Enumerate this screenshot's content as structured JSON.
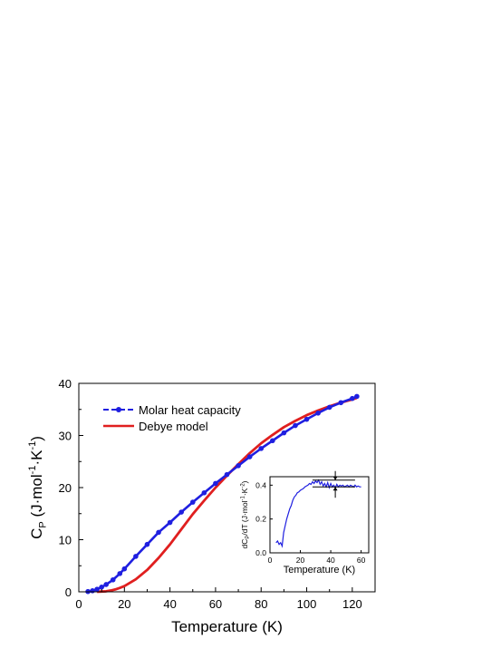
{
  "chart_data": [
    {
      "type": "line",
      "role": "main",
      "xlabel": "Temperature (K)",
      "ylabel": {
        "main": "C",
        "sub": "P",
        "rest": " (J·mol",
        "exp1": "-1",
        "mid": "·K",
        "exp2": "-1",
        "close": ")"
      },
      "xlim": [
        0,
        130
      ],
      "ylim": [
        0,
        40
      ],
      "xticks": [
        0,
        20,
        40,
        60,
        80,
        100,
        120
      ],
      "yticks": [
        0,
        10,
        20,
        30,
        40
      ],
      "legend": {
        "placement": "top-left"
      },
      "series": [
        {
          "name": "Molar heat capacity",
          "color": "#1f1fe0",
          "marker": "circle",
          "x": [
            4,
            6,
            8,
            10,
            12,
            15,
            18,
            20,
            25,
            30,
            35,
            40,
            45,
            50,
            55,
            60,
            65,
            70,
            75,
            80,
            85,
            90,
            95,
            100,
            105,
            110,
            115,
            120,
            122
          ],
          "y": [
            0.05,
            0.2,
            0.5,
            0.9,
            1.4,
            2.3,
            3.5,
            4.4,
            6.8,
            9.1,
            11.4,
            13.3,
            15.3,
            17.2,
            19.0,
            20.8,
            22.5,
            24.2,
            25.9,
            27.5,
            29.0,
            30.5,
            31.9,
            33.1,
            34.3,
            35.4,
            36.3,
            37.1,
            37.5
          ]
        },
        {
          "name": "Debye model",
          "color": "#e01f1f",
          "marker": "none",
          "x": [
            8,
            10,
            12,
            14,
            16,
            18,
            20,
            25,
            30,
            35,
            40,
            45,
            50,
            55,
            60,
            65,
            70,
            75,
            80,
            85,
            90,
            95,
            100,
            105,
            110,
            115,
            120,
            122
          ],
          "y": [
            0.0,
            0.05,
            0.1,
            0.25,
            0.45,
            0.75,
            1.1,
            2.4,
            4.2,
            6.5,
            9.1,
            12.0,
            14.9,
            17.5,
            20.0,
            22.3,
            24.5,
            26.6,
            28.5,
            30.1,
            31.6,
            32.8,
            33.9,
            34.8,
            35.6,
            36.3,
            36.9,
            37.2
          ]
        }
      ]
    },
    {
      "type": "line",
      "role": "inset",
      "xlabel": "Temperature (K)",
      "ylabel": {
        "main": "dC",
        "sub": "P",
        "rest": "/dT (J·mol",
        "exp1": "-1",
        "mid": "·K",
        "exp2": "-2",
        "close": ")"
      },
      "xlim": [
        0,
        65
      ],
      "ylim": [
        0,
        0.45
      ],
      "xticks": [
        0,
        20,
        40,
        60
      ],
      "yticks": [
        0.0,
        0.2,
        0.4
      ],
      "series": [
        {
          "name": "",
          "color": "#1f1fe0",
          "x": [
            4,
            5,
            6,
            7,
            8,
            9,
            10,
            11,
            12,
            13,
            14,
            15,
            16,
            17,
            18,
            19,
            20,
            21,
            22,
            23,
            24,
            25,
            26,
            27,
            28,
            29,
            30,
            31,
            32,
            33,
            34,
            35,
            36,
            37,
            38,
            39,
            40,
            41,
            42,
            43,
            44,
            45,
            46,
            47,
            48,
            49,
            50,
            51,
            52,
            53,
            54,
            55,
            56,
            57,
            58,
            59,
            60
          ],
          "y": [
            0.06,
            0.07,
            0.05,
            0.06,
            0.04,
            0.12,
            0.16,
            0.2,
            0.23,
            0.26,
            0.28,
            0.31,
            0.33,
            0.34,
            0.355,
            0.36,
            0.37,
            0.375,
            0.38,
            0.39,
            0.395,
            0.4,
            0.41,
            0.405,
            0.42,
            0.41,
            0.425,
            0.415,
            0.43,
            0.405,
            0.42,
            0.395,
            0.41,
            0.39,
            0.415,
            0.385,
            0.41,
            0.39,
            0.4,
            0.385,
            0.405,
            0.39,
            0.4,
            0.395,
            0.4,
            0.39,
            0.395,
            0.4,
            0.39,
            0.4,
            0.395,
            0.39,
            0.4,
            0.39,
            0.395,
            0.39,
            0.39
          ]
        }
      ],
      "annotations": {
        "upper_line": 0.43,
        "lower_line": 0.39,
        "arrow_x": 43
      }
    }
  ]
}
